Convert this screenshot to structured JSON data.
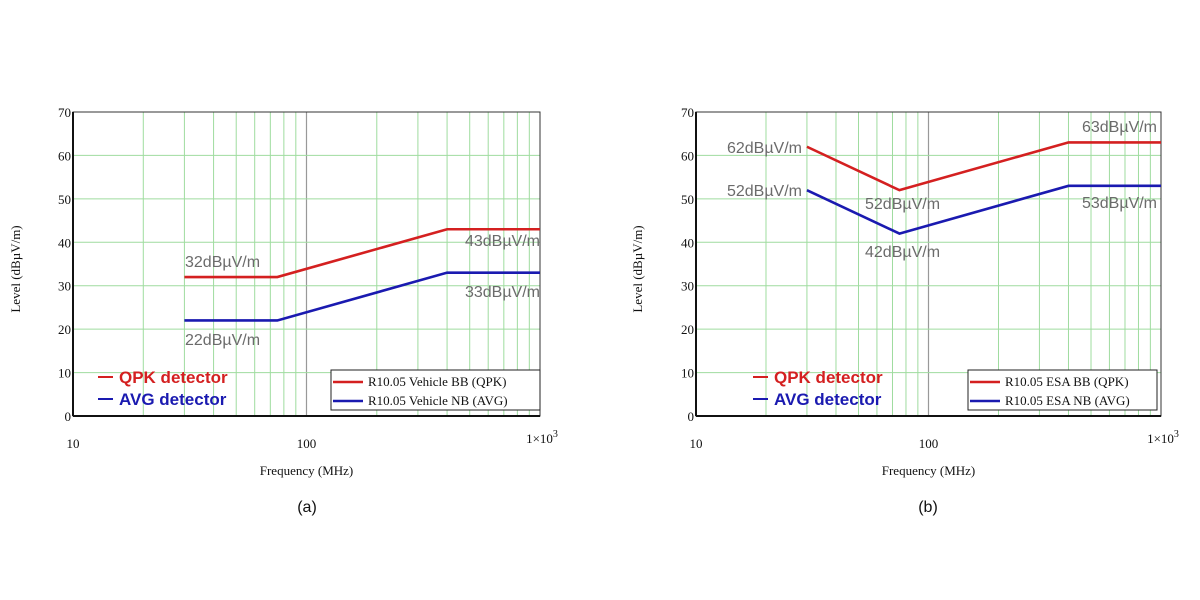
{
  "chart_data": [
    {
      "type": "line",
      "caption": "(a)",
      "xlabel": "Frequency (MHz)",
      "ylabel": "Level  (dBµV/m)",
      "xscale": "log",
      "xlim": [
        10,
        1000
      ],
      "ylim": [
        0,
        70
      ],
      "xticks": [
        "10",
        "100",
        "1×10^3"
      ],
      "yticks": [
        "0",
        "10",
        "20",
        "30",
        "40",
        "50",
        "60",
        "70"
      ],
      "grid": true,
      "series": [
        {
          "name": "R10.05 Vehicle BB (QPK)",
          "color": "#d42020",
          "x": [
            30,
            75,
            400,
            1000
          ],
          "y": [
            32,
            32,
            43,
            43
          ]
        },
        {
          "name": "R10.05 Vehicle NB (AVG)",
          "color": "#1a1ab0",
          "x": [
            30,
            75,
            400,
            1000
          ],
          "y": [
            22,
            22,
            33,
            33
          ]
        }
      ],
      "annotations": [
        "32dBµV/m",
        "22dBµV/m",
        "43dBµV/m",
        "33dBµV/m"
      ],
      "detector_labels": [
        {
          "text": "QPK detector",
          "color": "#d42020"
        },
        {
          "text": "AVG detector",
          "color": "#1a1ab0"
        }
      ],
      "legend": "bottom-right"
    },
    {
      "type": "line",
      "caption": "(b)",
      "xlabel": "Frequency (MHz)",
      "ylabel": "Level  (dBµV/m)",
      "xscale": "log",
      "xlim": [
        10,
        1000
      ],
      "ylim": [
        0,
        70
      ],
      "xticks": [
        "10",
        "100",
        "1×10^3"
      ],
      "yticks": [
        "0",
        "10",
        "20",
        "30",
        "40",
        "50",
        "60",
        "70"
      ],
      "grid": true,
      "series": [
        {
          "name": "R10.05 ESA BB (QPK)",
          "color": "#d42020",
          "x": [
            30,
            75,
            400,
            1000
          ],
          "y": [
            62,
            52,
            63,
            63
          ]
        },
        {
          "name": "R10.05 ESA NB (AVG)",
          "color": "#1a1ab0",
          "x": [
            30,
            75,
            400,
            1000
          ],
          "y": [
            52,
            42,
            53,
            53
          ]
        }
      ],
      "annotations": [
        "62dBµV/m",
        "52dBµV/m",
        "52dBµV/m",
        "42dBµV/m",
        "63dBµV/m",
        "53dBµV/m"
      ],
      "detector_labels": [
        {
          "text": "QPK detector",
          "color": "#d42020"
        },
        {
          "text": "AVG detector",
          "color": "#1a1ab0"
        }
      ],
      "legend": "bottom-right"
    }
  ]
}
